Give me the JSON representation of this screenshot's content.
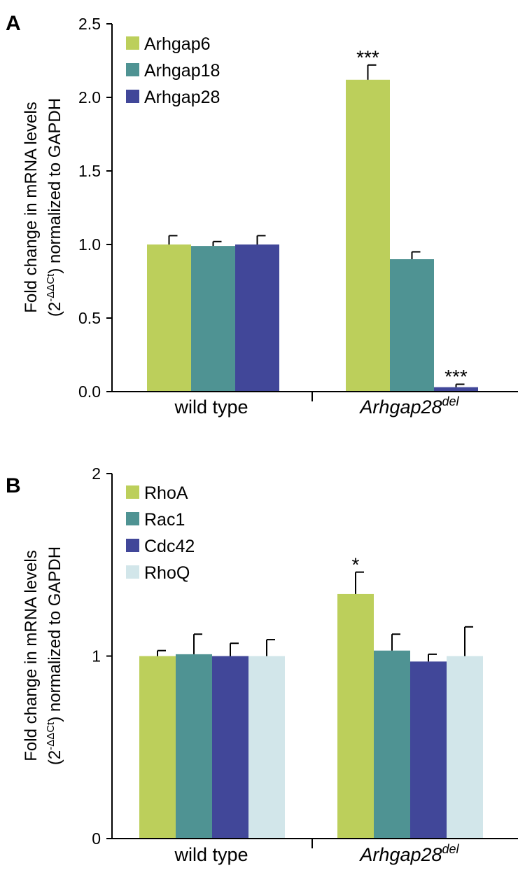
{
  "chart_data": [
    {
      "panel": "A",
      "type": "bar",
      "categories": [
        "wild type",
        "Arhgap28"
      ],
      "category_superscripts": [
        "",
        "del"
      ],
      "ylabel": {
        "line1": "Fold change in mRNA levels",
        "line2_pre": "(2",
        "line2_sup": "-ΔΔCt",
        "line2_post": ") normalized to GAPDH"
      },
      "ylim": [
        0,
        2.5
      ],
      "yticks": [
        "0.0",
        "0.5",
        "1.0",
        "1.5",
        "2.0",
        "2.5"
      ],
      "grid": false,
      "legend_position": "top-left",
      "series": [
        {
          "name": "Arhgap6",
          "color": "#bccf5b",
          "values": [
            1.0,
            2.12
          ],
          "errors": [
            0.06,
            0.1
          ],
          "sig": [
            "",
            "***"
          ]
        },
        {
          "name": "Arhgap18",
          "color": "#4f9393",
          "values": [
            0.99,
            0.9
          ],
          "errors": [
            0.03,
            0.05
          ],
          "sig": [
            "",
            ""
          ]
        },
        {
          "name": "Arhgap28",
          "color": "#414799",
          "values": [
            1.0,
            0.03
          ],
          "errors": [
            0.06,
            0.02
          ],
          "sig": [
            "",
            "***"
          ]
        }
      ]
    },
    {
      "panel": "B",
      "type": "bar",
      "categories": [
        "wild type",
        "Arhgap28"
      ],
      "category_superscripts": [
        "",
        "del"
      ],
      "ylabel": {
        "line1": "Fold change in mRNA levels",
        "line2_pre": "(2",
        "line2_sup": "-ΔΔCt",
        "line2_post": ") normalized to GAPDH"
      },
      "ylim": [
        0,
        2
      ],
      "yticks": [
        "0",
        "1",
        "2"
      ],
      "grid": false,
      "legend_position": "top-left",
      "series": [
        {
          "name": "RhoA",
          "color": "#bccf5b",
          "values": [
            1.0,
            1.34
          ],
          "errors": [
            0.03,
            0.12
          ],
          "sig": [
            "",
            "*"
          ]
        },
        {
          "name": "Rac1",
          "color": "#4f9393",
          "values": [
            1.01,
            1.03
          ],
          "errors": [
            0.11,
            0.09
          ],
          "sig": [
            "",
            ""
          ]
        },
        {
          "name": "Cdc42",
          "color": "#414799",
          "values": [
            1.0,
            0.97
          ],
          "errors": [
            0.07,
            0.04
          ],
          "sig": [
            "",
            ""
          ]
        },
        {
          "name": "RhoQ",
          "color": "#d2e6ea",
          "values": [
            1.0,
            1.0
          ],
          "errors": [
            0.09,
            0.16
          ],
          "sig": [
            "",
            ""
          ]
        }
      ]
    }
  ]
}
